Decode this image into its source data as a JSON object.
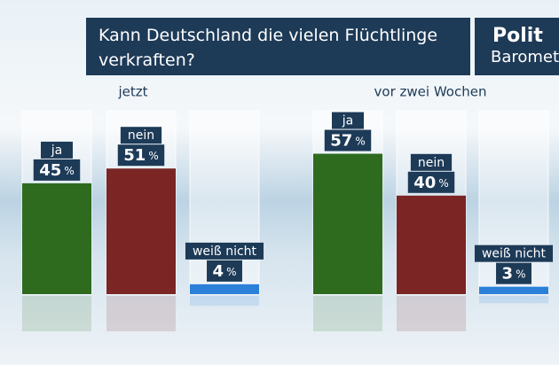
{
  "chart_data": {
    "type": "bar",
    "title": "Kann Deutschland die vielen Flüchtlinge verkraften?",
    "logo": {
      "line1": "Polit",
      "line2": "Barometer"
    },
    "categories": [
      "ja",
      "nein",
      "weiß nicht"
    ],
    "colors": [
      "#2e6b1f",
      "#7b2525",
      "#2b80d8"
    ],
    "unit": "%",
    "groups": [
      {
        "name": "jetzt",
        "values": [
          45,
          51,
          4
        ]
      },
      {
        "name": "vor zwei Wochen",
        "values": [
          57,
          40,
          3
        ]
      }
    ]
  }
}
